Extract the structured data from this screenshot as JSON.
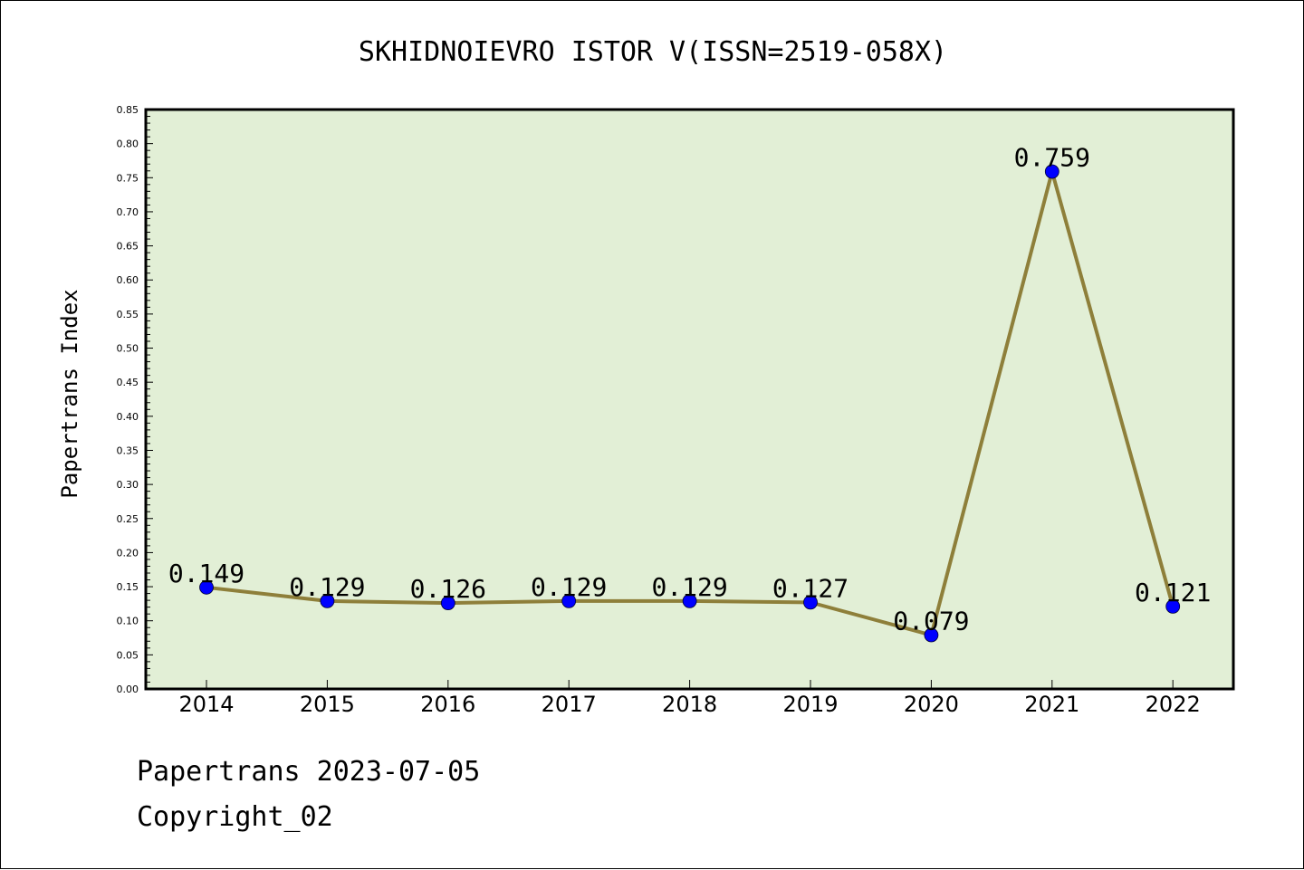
{
  "footer": {
    "line1": "Papertrans 2023-07-05",
    "line2": "Copyright_02"
  },
  "colors": {
    "plot_background": "#e2efd6",
    "line": "#8e7f3a",
    "marker": "#0000ff",
    "axis": "#000000"
  },
  "chart_data": {
    "type": "line",
    "title": "SKHIDNOIEVRO ISTOR V(ISSN=2519-058X)",
    "xlabel": "",
    "ylabel": "Papertrans Index",
    "categories": [
      "2014",
      "2015",
      "2016",
      "2017",
      "2018",
      "2019",
      "2020",
      "2021",
      "2022"
    ],
    "series": [
      {
        "name": "Papertrans Index",
        "values": [
          0.149,
          0.129,
          0.126,
          0.129,
          0.129,
          0.127,
          0.079,
          0.759,
          0.121
        ],
        "labels": [
          "0.149",
          "0.129",
          "0.126",
          "0.129",
          "0.129",
          "0.127",
          "0.079",
          "0.759",
          "0.121"
        ]
      }
    ],
    "ylim": [
      0,
      0.85
    ],
    "yticks": [
      "0.00",
      "0.05",
      "0.10",
      "0.15",
      "0.20",
      "0.25",
      "0.30",
      "0.35",
      "0.40",
      "0.45",
      "0.50",
      "0.55",
      "0.60",
      "0.65",
      "0.70",
      "0.75",
      "0.80",
      "0.85"
    ],
    "ytick_values": [
      0,
      0.05,
      0.1,
      0.15,
      0.2,
      0.25,
      0.3,
      0.35,
      0.4,
      0.45,
      0.5,
      0.55,
      0.6,
      0.65,
      0.7,
      0.75,
      0.8,
      0.85
    ],
    "grid": false,
    "legend": "none"
  }
}
